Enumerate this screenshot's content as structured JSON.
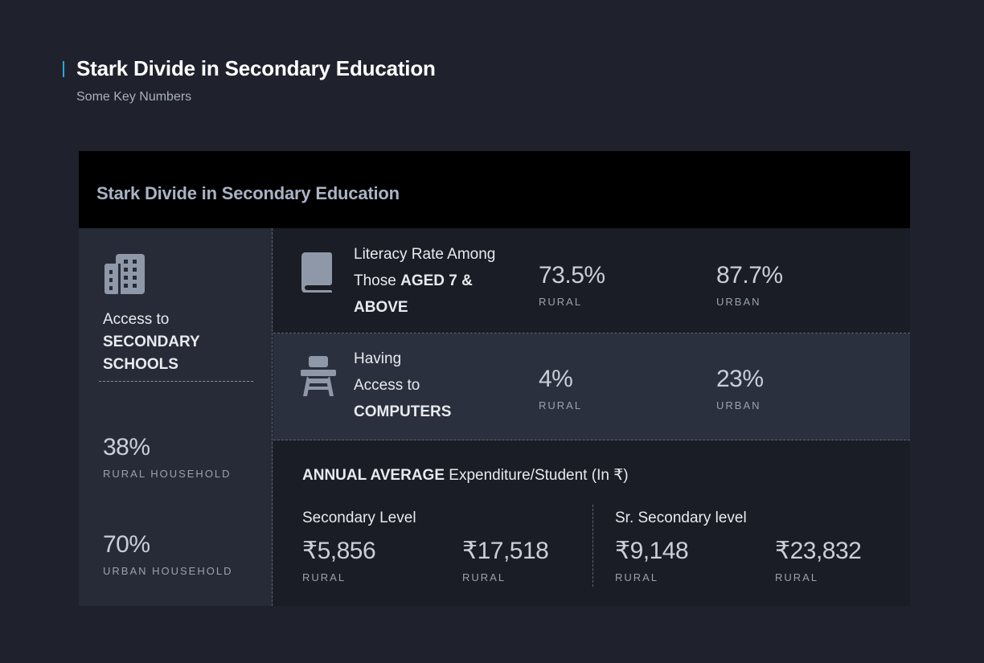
{
  "header": {
    "title": "Stark Divide in Secondary Education",
    "subtitle": "Some Key Numbers"
  },
  "card": {
    "title": "Stark Divide in Secondary Education",
    "access": {
      "icon": "building-icon",
      "line1": "Access to",
      "line2": "SECONDARY",
      "line3": "SCHOOLS",
      "rural": {
        "value": "38%",
        "label": "RURAL HOUSEHOLD"
      },
      "urban": {
        "value": "70%",
        "label": "URBAN HOUSEHOLD"
      }
    },
    "literacy": {
      "icon": "book-icon",
      "line1": "Literacy Rate Among",
      "line2_prefix": "Those ",
      "line2_bold": "AGED 7 &",
      "line3_bold": "ABOVE",
      "rural": {
        "value": "73.5%",
        "label": "RURAL"
      },
      "urban": {
        "value": "87.7%",
        "label": "URBAN"
      }
    },
    "computers": {
      "icon": "school-desk-icon",
      "line1": "Having",
      "line2": "Access to",
      "line3_bold": "COMPUTERS",
      "rural": {
        "value": "4%",
        "label": "RURAL"
      },
      "urban": {
        "value": "23%",
        "label": "URBAN"
      }
    },
    "expenditure": {
      "title_bold": "ANNUAL AVERAGE",
      "title_rest": " Expenditure/Student (In ₹)",
      "secondary": {
        "title": "Secondary Level",
        "items": [
          {
            "value": "₹5,856",
            "label": "RURAL"
          },
          {
            "value": "₹17,518",
            "label": "RURAL"
          }
        ]
      },
      "sr_secondary": {
        "title": "Sr. Secondary level",
        "items": [
          {
            "value": "₹9,148",
            "label": "RURAL"
          },
          {
            "value": "₹23,832",
            "label": "RURAL"
          }
        ]
      }
    }
  },
  "colors": {
    "page_bg": "#1f222c",
    "accent": "#2aa8d8",
    "card_header_bg": "#000000",
    "panel_bg": "#272b37",
    "row_highlight_bg": "#2b303e",
    "icon_color": "#8f98a8"
  }
}
